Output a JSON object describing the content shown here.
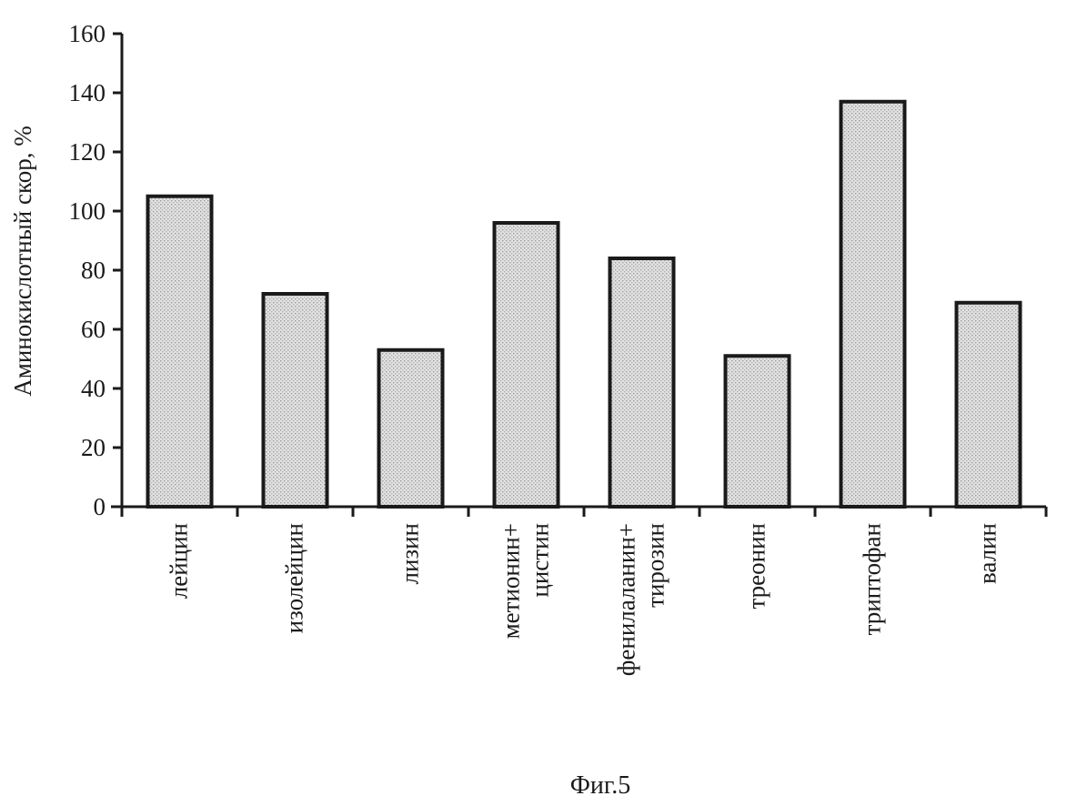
{
  "chart_data": {
    "type": "bar",
    "categories": [
      [
        "лейцин"
      ],
      [
        "изолейцин"
      ],
      [
        "лизин"
      ],
      [
        "метионин+",
        "цистин"
      ],
      [
        "фенилаланин+",
        "тирозин"
      ],
      [
        "треонин"
      ],
      [
        "триптофан"
      ],
      [
        "валин"
      ]
    ],
    "values": [
      105,
      72,
      53,
      96,
      84,
      51,
      137,
      69
    ],
    "ylabel": "Аминокислотный скор, %",
    "xlabel": "",
    "ylim": [
      0,
      160
    ],
    "yticks": [
      0,
      20,
      40,
      60,
      80,
      100,
      120,
      140,
      160
    ],
    "grid": false,
    "bar_color": "#d4d4d4",
    "edge_color": "#1a1a1a"
  },
  "caption": "Фиг.5"
}
